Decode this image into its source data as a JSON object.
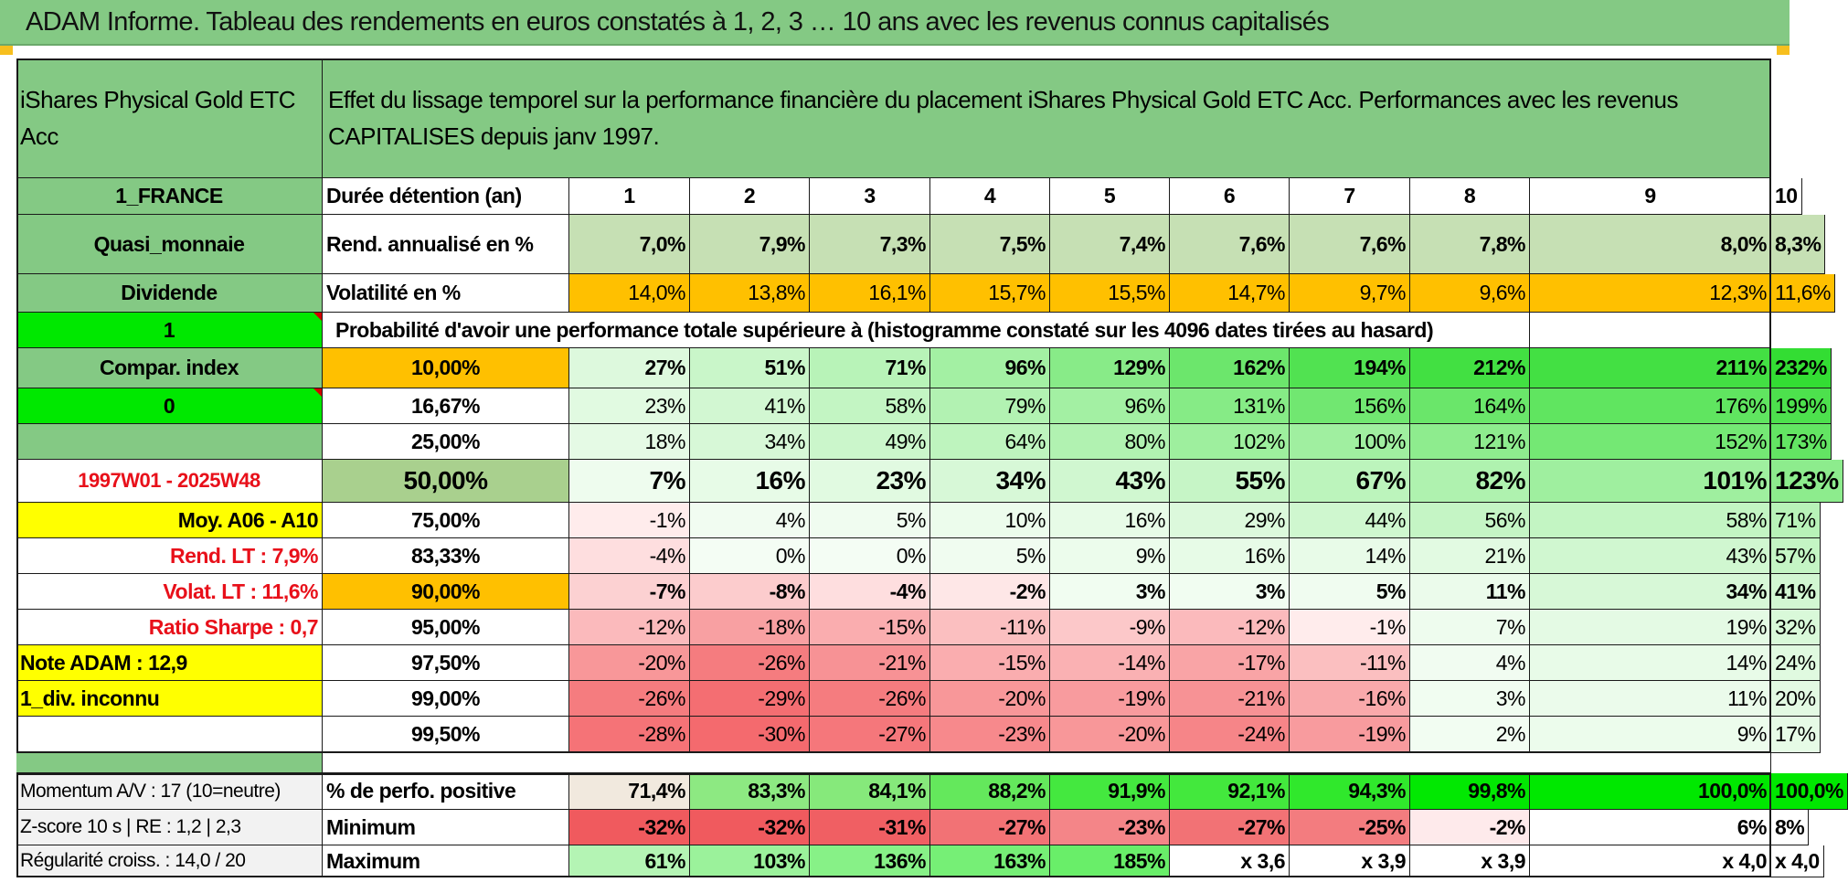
{
  "title": "ADAM Informe. Tableau des rendements en euros constatés à 1, 2, 3 … 10 ans avec les revenus connus capitalisés",
  "fund_name": "iShares Physical Gold ETC Acc",
  "description": "Effet du lissage temporel sur la performance financière du placement iShares Physical Gold ETC Acc. Performances avec les revenus CAPITALISES depuis janv 1997.",
  "side": [
    "1_FRANCE",
    "Quasi_monnaie",
    "Dividende",
    "1",
    "Compar. index",
    "0",
    "",
    "1997W01 - 2025W48",
    "Moy. A06 - A10",
    "Rend. LT :    7,9%",
    "Volat. LT :    11,6%",
    "Ratio Sharpe :     0,7",
    "Note ADAM : 12,9",
    "1_div. inconnu",
    ""
  ],
  "holding": {
    "label": "Durée détention (an)",
    "years": [
      "1",
      "2",
      "3",
      "4",
      "5",
      "6",
      "7",
      "8",
      "9",
      "10"
    ]
  },
  "rend": {
    "label": "Rend. annualisé en %",
    "values": [
      "7,0%",
      "7,9%",
      "7,3%",
      "7,5%",
      "7,4%",
      "7,6%",
      "7,6%",
      "7,8%",
      "8,0%",
      "8,3%"
    ]
  },
  "vol": {
    "label": "Volatilité en %",
    "values": [
      "14,0%",
      "13,8%",
      "16,1%",
      "15,7%",
      "15,5%",
      "14,7%",
      "9,7%",
      "9,6%",
      "12,3%",
      "11,6%"
    ]
  },
  "prob_header": "Probabilité d'avoir une performance totale supérieure à (histogramme constaté sur les 4096 dates tirées au hasard)",
  "prob": [
    {
      "p": "10,00%",
      "v": [
        "27%",
        "51%",
        "71%",
        "96%",
        "129%",
        "162%",
        "194%",
        "212%",
        "211%",
        "232%"
      ]
    },
    {
      "p": "16,67%",
      "v": [
        "23%",
        "41%",
        "58%",
        "79%",
        "96%",
        "131%",
        "156%",
        "164%",
        "176%",
        "199%"
      ]
    },
    {
      "p": "25,00%",
      "v": [
        "18%",
        "34%",
        "49%",
        "64%",
        "80%",
        "102%",
        "100%",
        "121%",
        "152%",
        "173%"
      ]
    },
    {
      "p": "50,00%",
      "v": [
        "7%",
        "16%",
        "23%",
        "34%",
        "43%",
        "55%",
        "67%",
        "82%",
        "101%",
        "123%"
      ]
    },
    {
      "p": "75,00%",
      "v": [
        "-1%",
        "4%",
        "5%",
        "10%",
        "16%",
        "29%",
        "44%",
        "56%",
        "58%",
        "71%"
      ]
    },
    {
      "p": "83,33%",
      "v": [
        "-4%",
        "0%",
        "0%",
        "5%",
        "9%",
        "16%",
        "14%",
        "21%",
        "43%",
        "57%"
      ]
    },
    {
      "p": "90,00%",
      "v": [
        "-7%",
        "-8%",
        "-4%",
        "-2%",
        "3%",
        "3%",
        "5%",
        "11%",
        "34%",
        "41%"
      ]
    },
    {
      "p": "95,00%",
      "v": [
        "-12%",
        "-18%",
        "-15%",
        "-11%",
        "-9%",
        "-12%",
        "-1%",
        "7%",
        "19%",
        "32%"
      ]
    },
    {
      "p": "97,50%",
      "v": [
        "-20%",
        "-26%",
        "-21%",
        "-15%",
        "-14%",
        "-17%",
        "-11%",
        "4%",
        "14%",
        "24%"
      ]
    },
    {
      "p": "99,00%",
      "v": [
        "-26%",
        "-29%",
        "-26%",
        "-20%",
        "-19%",
        "-21%",
        "-16%",
        "3%",
        "11%",
        "20%"
      ]
    },
    {
      "p": "99,50%",
      "v": [
        "-28%",
        "-30%",
        "-27%",
        "-23%",
        "-20%",
        "-24%",
        "-19%",
        "2%",
        "9%",
        "17%"
      ]
    }
  ],
  "bottom": [
    {
      "side": "Momentum A/V : 17 (10=neutre)",
      "label": "% de perfo. positive",
      "v": [
        "71,4%",
        "83,3%",
        "84,1%",
        "88,2%",
        "91,9%",
        "92,1%",
        "94,3%",
        "99,8%",
        "100,0%",
        "100,0%"
      ]
    },
    {
      "side": "Z-score 10 s | RE : 1,2  |  2,3",
      "label": "Minimum",
      "v": [
        "-32%",
        "-32%",
        "-31%",
        "-27%",
        "-23%",
        "-27%",
        "-25%",
        "-2%",
        "6%",
        "8%"
      ]
    },
    {
      "side": "Régularité croiss. : 14,0 / 20",
      "label": "Maximum",
      "v": [
        "61%",
        "103%",
        "136%",
        "163%",
        "185%",
        "x 3,6",
        "x 3,9",
        "x 3,9",
        "x 4,0",
        "x 4,0"
      ]
    }
  ],
  "colors": {
    "header_green": "#84c984",
    "bright_green": "#00e800",
    "yellow": "#ffff00",
    "orange": "#ffc000",
    "rend_green": "#c6e0b4",
    "alt_gray": "#f2f2f2",
    "red_text": "#e8101a"
  }
}
